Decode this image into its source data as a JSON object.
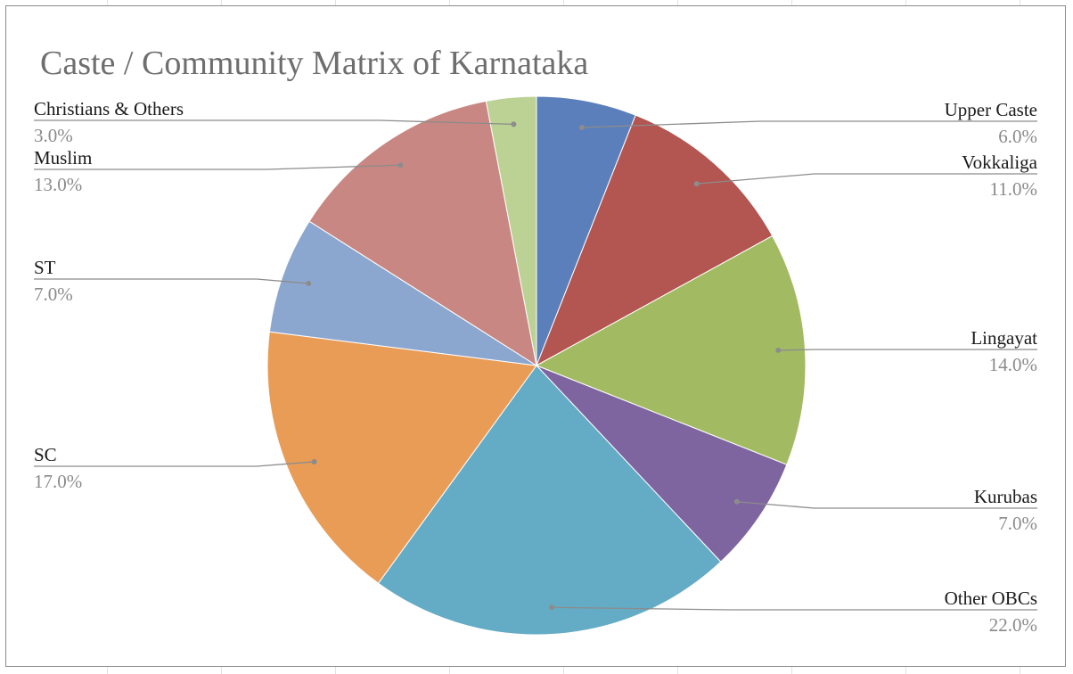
{
  "chart_data": {
    "type": "pie",
    "title": "Caste / Community Matrix of Karnataka",
    "slices": [
      {
        "label": "Upper Caste",
        "value": 6.0,
        "percent_label": "6.0%",
        "color": "#5b7fba"
      },
      {
        "label": "Vokkaliga",
        "value": 11.0,
        "percent_label": "11.0%",
        "color": "#b35550"
      },
      {
        "label": "Lingayat",
        "value": 14.0,
        "percent_label": "14.0%",
        "color": "#a2bb62"
      },
      {
        "label": "Kurubas",
        "value": 7.0,
        "percent_label": "7.0%",
        "color": "#7e65a0"
      },
      {
        "label": "Other OBCs",
        "value": 22.0,
        "percent_label": "22.0%",
        "color": "#64abc5"
      },
      {
        "label": "SC",
        "value": 17.0,
        "percent_label": "17.0%",
        "color": "#e99c56"
      },
      {
        "label": "ST",
        "value": 7.0,
        "percent_label": "7.0%",
        "color": "#8ca7cf"
      },
      {
        "label": "Muslim",
        "value": 13.0,
        "percent_label": "13.0%",
        "color": "#c88782"
      },
      {
        "label": "Christians & Others",
        "value": 3.0,
        "percent_label": "3.0%",
        "color": "#bcd194"
      }
    ],
    "legend": "none",
    "data_labels": "outside-with-leader-lines"
  }
}
